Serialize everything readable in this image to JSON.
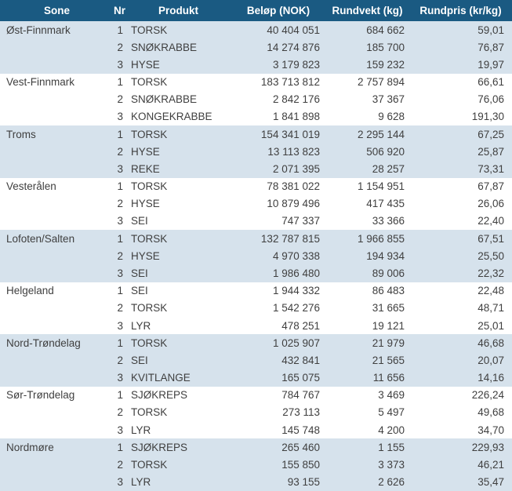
{
  "colors": {
    "header_bg": "#1A5A82",
    "header_text": "#FFFFFF",
    "shaded_row_bg": "#D6E2EC",
    "row_bg": "#FFFFFF",
    "text": "#3F3F3F"
  },
  "table": {
    "columns": [
      {
        "key": "sone",
        "label": "Sone"
      },
      {
        "key": "nr",
        "label": "Nr"
      },
      {
        "key": "produkt",
        "label": "Produkt"
      },
      {
        "key": "belop",
        "label": "Beløp (NOK)"
      },
      {
        "key": "rundvekt",
        "label": "Rundvekt (kg)"
      },
      {
        "key": "rundpris",
        "label": "Rundpris (kr/kg)"
      }
    ],
    "groups": [
      {
        "sone": "Øst-Finnmark",
        "shaded": true,
        "rows": [
          {
            "nr": "1",
            "produkt": "TORSK",
            "belop": "40 404 051",
            "rundvekt": "684 662",
            "rundpris": "59,01"
          },
          {
            "nr": "2",
            "produkt": "SNØKRABBE",
            "belop": "14 274 876",
            "rundvekt": "185 700",
            "rundpris": "76,87"
          },
          {
            "nr": "3",
            "produkt": "HYSE",
            "belop": "3 179 823",
            "rundvekt": "159 232",
            "rundpris": "19,97"
          }
        ]
      },
      {
        "sone": "Vest-Finnmark",
        "shaded": false,
        "rows": [
          {
            "nr": "1",
            "produkt": "TORSK",
            "belop": "183 713 812",
            "rundvekt": "2 757 894",
            "rundpris": "66,61"
          },
          {
            "nr": "2",
            "produkt": "SNØKRABBE",
            "belop": "2 842 176",
            "rundvekt": "37 367",
            "rundpris": "76,06"
          },
          {
            "nr": "3",
            "produkt": "KONGEKRABBE",
            "belop": "1 841 898",
            "rundvekt": "9 628",
            "rundpris": "191,30"
          }
        ]
      },
      {
        "sone": "Troms",
        "shaded": true,
        "rows": [
          {
            "nr": "1",
            "produkt": "TORSK",
            "belop": "154 341 019",
            "rundvekt": "2 295 144",
            "rundpris": "67,25"
          },
          {
            "nr": "2",
            "produkt": "HYSE",
            "belop": "13 113 823",
            "rundvekt": "506 920",
            "rundpris": "25,87"
          },
          {
            "nr": "3",
            "produkt": "REKE",
            "belop": "2 071 395",
            "rundvekt": "28 257",
            "rundpris": "73,31"
          }
        ]
      },
      {
        "sone": "Vesterålen",
        "shaded": false,
        "rows": [
          {
            "nr": "1",
            "produkt": "TORSK",
            "belop": "78 381 022",
            "rundvekt": "1 154 951",
            "rundpris": "67,87"
          },
          {
            "nr": "2",
            "produkt": "HYSE",
            "belop": "10 879 496",
            "rundvekt": "417 435",
            "rundpris": "26,06"
          },
          {
            "nr": "3",
            "produkt": "SEI",
            "belop": "747 337",
            "rundvekt": "33 366",
            "rundpris": "22,40"
          }
        ]
      },
      {
        "sone": "Lofoten/Salten",
        "shaded": true,
        "rows": [
          {
            "nr": "1",
            "produkt": "TORSK",
            "belop": "132 787 815",
            "rundvekt": "1 966 855",
            "rundpris": "67,51"
          },
          {
            "nr": "2",
            "produkt": "HYSE",
            "belop": "4 970 338",
            "rundvekt": "194 934",
            "rundpris": "25,50"
          },
          {
            "nr": "3",
            "produkt": "SEI",
            "belop": "1 986 480",
            "rundvekt": "89 006",
            "rundpris": "22,32"
          }
        ]
      },
      {
        "sone": "Helgeland",
        "shaded": false,
        "rows": [
          {
            "nr": "1",
            "produkt": "SEI",
            "belop": "1 944 332",
            "rundvekt": "86 483",
            "rundpris": "22,48"
          },
          {
            "nr": "2",
            "produkt": "TORSK",
            "belop": "1 542 276",
            "rundvekt": "31 665",
            "rundpris": "48,71"
          },
          {
            "nr": "3",
            "produkt": "LYR",
            "belop": "478 251",
            "rundvekt": "19 121",
            "rundpris": "25,01"
          }
        ]
      },
      {
        "sone": "Nord-Trøndelag",
        "shaded": true,
        "rows": [
          {
            "nr": "1",
            "produkt": "TORSK",
            "belop": "1 025 907",
            "rundvekt": "21 979",
            "rundpris": "46,68"
          },
          {
            "nr": "2",
            "produkt": "SEI",
            "belop": "432 841",
            "rundvekt": "21 565",
            "rundpris": "20,07"
          },
          {
            "nr": "3",
            "produkt": "KVITLANGE",
            "belop": "165 075",
            "rundvekt": "11 656",
            "rundpris": "14,16"
          }
        ]
      },
      {
        "sone": "Sør-Trøndelag",
        "shaded": false,
        "rows": [
          {
            "nr": "1",
            "produkt": "SJØKREPS",
            "belop": "784 767",
            "rundvekt": "3 469",
            "rundpris": "226,24"
          },
          {
            "nr": "2",
            "produkt": "TORSK",
            "belop": "273 113",
            "rundvekt": "5 497",
            "rundpris": "49,68"
          },
          {
            "nr": "3",
            "produkt": "LYR",
            "belop": "145 748",
            "rundvekt": "4 200",
            "rundpris": "34,70"
          }
        ]
      },
      {
        "sone": "Nordmøre",
        "shaded": true,
        "rows": [
          {
            "nr": "1",
            "produkt": "SJØKREPS",
            "belop": "265 460",
            "rundvekt": "1 155",
            "rundpris": "229,93"
          },
          {
            "nr": "2",
            "produkt": "TORSK",
            "belop": "155 850",
            "rundvekt": "3 373",
            "rundpris": "46,21"
          },
          {
            "nr": "3",
            "produkt": "LYR",
            "belop": "93 155",
            "rundvekt": "2 626",
            "rundpris": "35,47"
          }
        ]
      }
    ]
  },
  "chart_data": {
    "type": "table",
    "columns": [
      "Sone",
      "Nr",
      "Produkt",
      "Beløp (NOK)",
      "Rundvekt (kg)",
      "Rundpris (kr/kg)"
    ],
    "rows": [
      [
        "Øst-Finnmark",
        1,
        "TORSK",
        40404051,
        684662,
        59.01
      ],
      [
        "Øst-Finnmark",
        2,
        "SNØKRABBE",
        14274876,
        185700,
        76.87
      ],
      [
        "Øst-Finnmark",
        3,
        "HYSE",
        3179823,
        159232,
        19.97
      ],
      [
        "Vest-Finnmark",
        1,
        "TORSK",
        183713812,
        2757894,
        66.61
      ],
      [
        "Vest-Finnmark",
        2,
        "SNØKRABBE",
        2842176,
        37367,
        76.06
      ],
      [
        "Vest-Finnmark",
        3,
        "KONGEKRABBE",
        1841898,
        9628,
        191.3
      ],
      [
        "Troms",
        1,
        "TORSK",
        154341019,
        2295144,
        67.25
      ],
      [
        "Troms",
        2,
        "HYSE",
        13113823,
        506920,
        25.87
      ],
      [
        "Troms",
        3,
        "REKE",
        2071395,
        28257,
        73.31
      ],
      [
        "Vesterålen",
        1,
        "TORSK",
        78381022,
        1154951,
        67.87
      ],
      [
        "Vesterålen",
        2,
        "HYSE",
        10879496,
        417435,
        26.06
      ],
      [
        "Vesterålen",
        3,
        "SEI",
        747337,
        33366,
        22.4
      ],
      [
        "Lofoten/Salten",
        1,
        "TORSK",
        132787815,
        1966855,
        67.51
      ],
      [
        "Lofoten/Salten",
        2,
        "HYSE",
        4970338,
        194934,
        25.5
      ],
      [
        "Lofoten/Salten",
        3,
        "SEI",
        1986480,
        89006,
        22.32
      ],
      [
        "Helgeland",
        1,
        "SEI",
        1944332,
        86483,
        22.48
      ],
      [
        "Helgeland",
        2,
        "TORSK",
        1542276,
        31665,
        48.71
      ],
      [
        "Helgeland",
        3,
        "LYR",
        478251,
        19121,
        25.01
      ],
      [
        "Nord-Trøndelag",
        1,
        "TORSK",
        1025907,
        21979,
        46.68
      ],
      [
        "Nord-Trøndelag",
        2,
        "SEI",
        432841,
        21565,
        20.07
      ],
      [
        "Nord-Trøndelag",
        3,
        "KVITLANGE",
        165075,
        11656,
        14.16
      ],
      [
        "Sør-Trøndelag",
        1,
        "SJØKREPS",
        784767,
        3469,
        226.24
      ],
      [
        "Sør-Trøndelag",
        2,
        "TORSK",
        273113,
        5497,
        49.68
      ],
      [
        "Sør-Trøndelag",
        3,
        "LYR",
        145748,
        4200,
        34.7
      ],
      [
        "Nordmøre",
        1,
        "SJØKREPS",
        265460,
        1155,
        229.93
      ],
      [
        "Nordmøre",
        2,
        "TORSK",
        155850,
        3373,
        46.21
      ],
      [
        "Nordmøre",
        3,
        "LYR",
        93155,
        2626,
        35.47
      ]
    ]
  }
}
